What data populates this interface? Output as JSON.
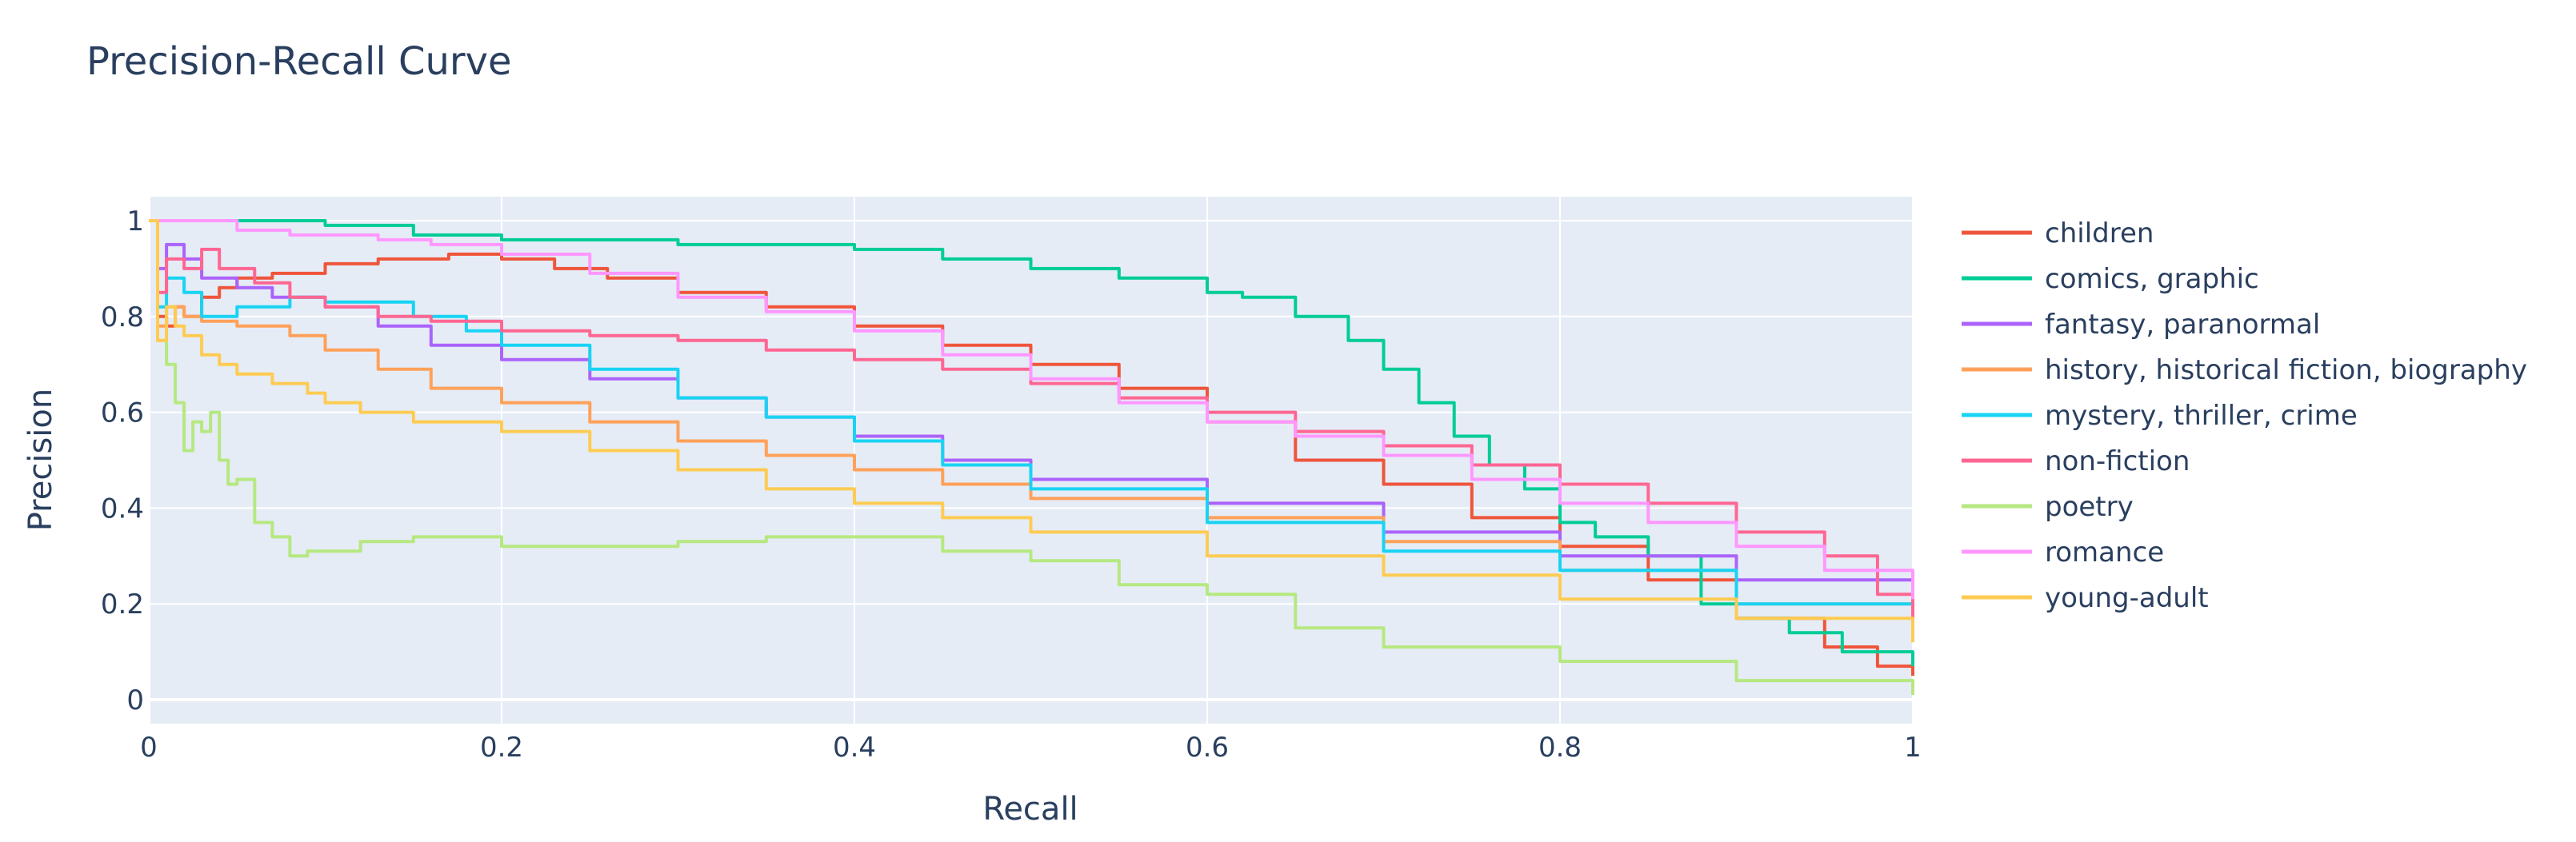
{
  "chart_data": {
    "type": "line",
    "title": "Precision-Recall Curve",
    "xlabel": "Recall",
    "ylabel": "Precision",
    "xlim": [
      0,
      1
    ],
    "ylim": [
      -0.05,
      1.05
    ],
    "xticks": [
      0,
      0.2,
      0.4,
      0.6,
      0.8,
      1
    ],
    "xtick_labels": [
      "0",
      "0.2",
      "0.4",
      "0.6",
      "0.8",
      "1"
    ],
    "yticks": [
      0,
      0.2,
      0.4,
      0.6,
      0.8,
      1
    ],
    "ytick_labels": [
      "0",
      "0.2",
      "0.4",
      "0.6",
      "0.8",
      "1"
    ],
    "grid": true,
    "legend_position": "right",
    "plot_background": "#e5ecf6",
    "series": [
      {
        "name": "children",
        "color": "#ef553b",
        "x": [
          0,
          0.005,
          0.01,
          0.015,
          0.02,
          0.03,
          0.04,
          0.05,
          0.07,
          0.1,
          0.13,
          0.17,
          0.2,
          0.23,
          0.26,
          0.3,
          0.35,
          0.4,
          0.45,
          0.5,
          0.55,
          0.6,
          0.65,
          0.7,
          0.75,
          0.8,
          0.85,
          0.9,
          0.95,
          0.98,
          1.0
        ],
        "y": [
          1.0,
          0.8,
          0.78,
          0.82,
          0.8,
          0.84,
          0.86,
          0.88,
          0.89,
          0.91,
          0.92,
          0.93,
          0.92,
          0.9,
          0.88,
          0.85,
          0.82,
          0.78,
          0.74,
          0.7,
          0.65,
          0.58,
          0.5,
          0.45,
          0.38,
          0.32,
          0.25,
          0.17,
          0.11,
          0.07,
          0.05
        ]
      },
      {
        "name": "comics, graphic",
        "color": "#00cc96",
        "x": [
          0,
          0.05,
          0.1,
          0.15,
          0.2,
          0.25,
          0.3,
          0.35,
          0.4,
          0.45,
          0.5,
          0.55,
          0.6,
          0.62,
          0.65,
          0.68,
          0.7,
          0.72,
          0.74,
          0.76,
          0.78,
          0.8,
          0.82,
          0.85,
          0.88,
          0.9,
          0.93,
          0.96,
          1.0
        ],
        "y": [
          1.0,
          1.0,
          0.99,
          0.97,
          0.96,
          0.96,
          0.95,
          0.95,
          0.94,
          0.92,
          0.9,
          0.88,
          0.85,
          0.84,
          0.8,
          0.75,
          0.69,
          0.62,
          0.55,
          0.49,
          0.44,
          0.37,
          0.34,
          0.3,
          0.2,
          0.17,
          0.14,
          0.1,
          0.07
        ]
      },
      {
        "name": "fantasy, paranormal",
        "color": "#ab63fa",
        "x": [
          0,
          0.005,
          0.01,
          0.02,
          0.03,
          0.05,
          0.07,
          0.1,
          0.13,
          0.16,
          0.2,
          0.25,
          0.3,
          0.35,
          0.4,
          0.45,
          0.5,
          0.6,
          0.7,
          0.8,
          0.9,
          1.0
        ],
        "y": [
          1.0,
          0.9,
          0.95,
          0.92,
          0.88,
          0.86,
          0.84,
          0.82,
          0.78,
          0.74,
          0.71,
          0.67,
          0.63,
          0.59,
          0.55,
          0.5,
          0.46,
          0.41,
          0.35,
          0.3,
          0.25,
          0.19
        ]
      },
      {
        "name": "history, historical fiction, biography",
        "color": "#ffa15a",
        "x": [
          0,
          0.005,
          0.01,
          0.02,
          0.03,
          0.05,
          0.08,
          0.1,
          0.13,
          0.16,
          0.2,
          0.25,
          0.3,
          0.35,
          0.4,
          0.45,
          0.5,
          0.6,
          0.7,
          0.8,
          0.9,
          1.0
        ],
        "y": [
          1.0,
          0.78,
          0.82,
          0.8,
          0.79,
          0.78,
          0.76,
          0.73,
          0.69,
          0.65,
          0.62,
          0.58,
          0.54,
          0.51,
          0.48,
          0.45,
          0.42,
          0.38,
          0.33,
          0.27,
          0.2,
          0.15
        ]
      },
      {
        "name": "mystery, thriller, crime",
        "color": "#19d3f3",
        "x": [
          0,
          0.005,
          0.01,
          0.02,
          0.03,
          0.05,
          0.08,
          0.1,
          0.12,
          0.15,
          0.18,
          0.2,
          0.25,
          0.3,
          0.35,
          0.4,
          0.45,
          0.5,
          0.6,
          0.7,
          0.8,
          0.9,
          1.0
        ],
        "y": [
          1.0,
          0.82,
          0.88,
          0.85,
          0.8,
          0.82,
          0.84,
          0.83,
          0.83,
          0.8,
          0.77,
          0.74,
          0.69,
          0.63,
          0.59,
          0.54,
          0.49,
          0.44,
          0.37,
          0.31,
          0.27,
          0.2,
          0.13
        ]
      },
      {
        "name": "non-fiction",
        "color": "#ff6692",
        "x": [
          0,
          0.005,
          0.01,
          0.02,
          0.03,
          0.04,
          0.06,
          0.08,
          0.1,
          0.13,
          0.16,
          0.2,
          0.25,
          0.3,
          0.35,
          0.4,
          0.45,
          0.5,
          0.55,
          0.6,
          0.65,
          0.7,
          0.75,
          0.8,
          0.85,
          0.9,
          0.95,
          0.98,
          1.0
        ],
        "y": [
          1.0,
          0.85,
          0.92,
          0.9,
          0.94,
          0.9,
          0.87,
          0.84,
          0.82,
          0.8,
          0.79,
          0.77,
          0.76,
          0.75,
          0.73,
          0.71,
          0.69,
          0.66,
          0.63,
          0.6,
          0.56,
          0.53,
          0.49,
          0.45,
          0.41,
          0.35,
          0.3,
          0.22,
          0.13
        ]
      },
      {
        "name": "poetry",
        "color": "#b6e880",
        "x": [
          0,
          0.005,
          0.01,
          0.015,
          0.02,
          0.025,
          0.03,
          0.035,
          0.04,
          0.045,
          0.05,
          0.06,
          0.07,
          0.08,
          0.09,
          0.1,
          0.12,
          0.15,
          0.2,
          0.25,
          0.3,
          0.35,
          0.4,
          0.45,
          0.5,
          0.55,
          0.6,
          0.65,
          0.7,
          0.8,
          0.9,
          1.0
        ],
        "y": [
          1.0,
          0.75,
          0.7,
          0.62,
          0.52,
          0.58,
          0.56,
          0.6,
          0.5,
          0.45,
          0.46,
          0.37,
          0.34,
          0.3,
          0.31,
          0.31,
          0.33,
          0.34,
          0.32,
          0.32,
          0.33,
          0.34,
          0.34,
          0.31,
          0.29,
          0.24,
          0.22,
          0.15,
          0.11,
          0.08,
          0.04,
          0.01
        ]
      },
      {
        "name": "romance",
        "color": "#ff97ff",
        "x": [
          0,
          0.02,
          0.05,
          0.08,
          0.1,
          0.13,
          0.16,
          0.2,
          0.25,
          0.3,
          0.35,
          0.4,
          0.45,
          0.5,
          0.55,
          0.6,
          0.65,
          0.7,
          0.75,
          0.8,
          0.85,
          0.9,
          0.95,
          1.0
        ],
        "y": [
          1.0,
          1.0,
          0.98,
          0.97,
          0.97,
          0.96,
          0.95,
          0.93,
          0.89,
          0.84,
          0.81,
          0.77,
          0.72,
          0.67,
          0.62,
          0.58,
          0.55,
          0.51,
          0.46,
          0.41,
          0.37,
          0.32,
          0.27,
          0.21
        ]
      },
      {
        "name": "young-adult",
        "color": "#fecb52",
        "x": [
          0,
          0.005,
          0.01,
          0.015,
          0.02,
          0.03,
          0.04,
          0.05,
          0.07,
          0.09,
          0.1,
          0.12,
          0.15,
          0.2,
          0.25,
          0.3,
          0.35,
          0.4,
          0.45,
          0.5,
          0.6,
          0.7,
          0.8,
          0.9,
          1.0
        ],
        "y": [
          1.0,
          0.75,
          0.82,
          0.78,
          0.76,
          0.72,
          0.7,
          0.68,
          0.66,
          0.64,
          0.62,
          0.6,
          0.58,
          0.56,
          0.52,
          0.48,
          0.44,
          0.41,
          0.38,
          0.35,
          0.3,
          0.26,
          0.21,
          0.17,
          0.12
        ]
      }
    ]
  }
}
